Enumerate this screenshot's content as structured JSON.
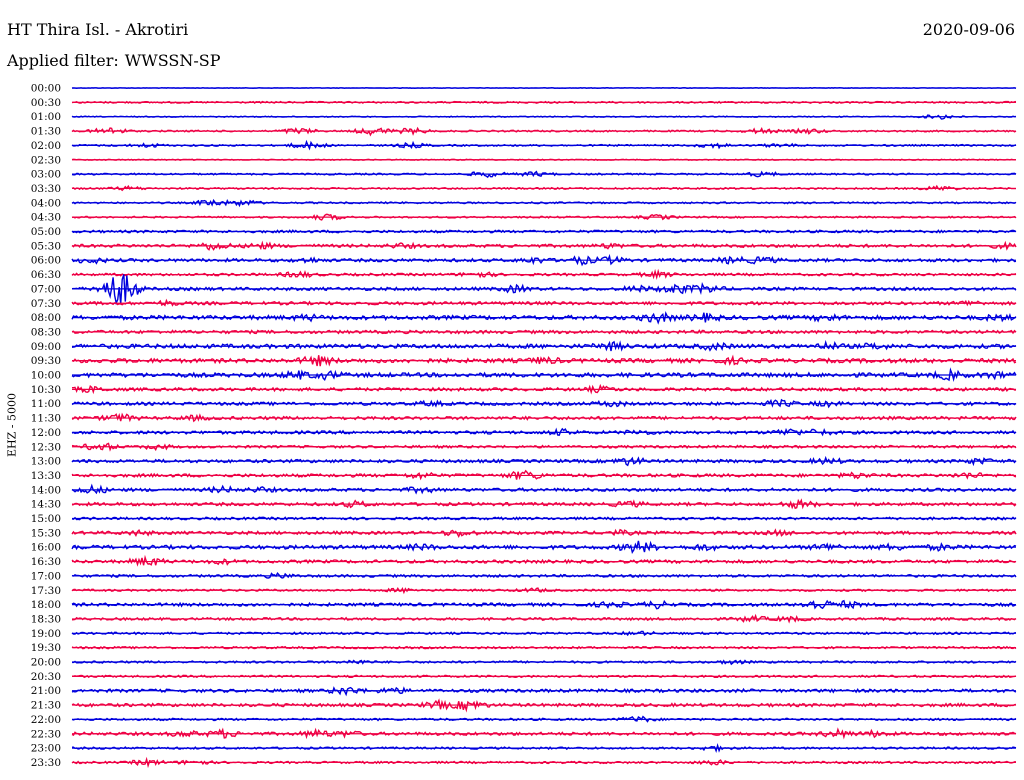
{
  "header": {
    "station": "HT Thira Isl. - Akrotiri",
    "date": "2020-09-06",
    "filter_label": "Applied filter:",
    "filter_value": "WWSSN-SP"
  },
  "chart_data": {
    "type": "line",
    "title": "HT Thira Isl. - Akrotiri",
    "ylabel": "EHZ - 5000",
    "xlabel": "",
    "x_range_minutes": [
      0,
      30
    ],
    "trace_labels": [
      "00:00",
      "00:30",
      "01:00",
      "01:30",
      "02:00",
      "02:30",
      "03:00",
      "03:30",
      "04:00",
      "04:30",
      "05:00",
      "05:30",
      "06:00",
      "06:30",
      "07:00",
      "07:30",
      "08:00",
      "08:30",
      "09:00",
      "09:30",
      "10:00",
      "10:30",
      "11:00",
      "11:30",
      "12:00",
      "12:30",
      "13:00",
      "13:30",
      "14:00",
      "14:30",
      "15:00",
      "15:30",
      "16:00",
      "16:30",
      "17:00",
      "17:30",
      "18:00",
      "18:30",
      "19:00",
      "19:30",
      "20:00",
      "20:30",
      "21:00",
      "21:30",
      "22:00",
      "22:30",
      "23:00",
      "23:30"
    ],
    "colors": {
      "even_hour": "#0000dd",
      "half_hour": "#ee0044"
    },
    "grid": false,
    "legend": "none",
    "series": [
      {
        "label": "00:00",
        "noise": 0.3,
        "bursts": []
      },
      {
        "label": "00:30",
        "noise": 0.8,
        "bursts": []
      },
      {
        "label": "01:00",
        "noise": 0.5,
        "bursts": [
          [
            0.92,
            2.5
          ]
        ]
      },
      {
        "label": "01:30",
        "noise": 0.8,
        "bursts": [
          [
            0.04,
            3.5
          ],
          [
            0.24,
            3
          ],
          [
            0.32,
            4
          ],
          [
            0.36,
            3
          ],
          [
            0.73,
            2.5
          ],
          [
            0.78,
            2.5
          ]
        ]
      },
      {
        "label": "02:00",
        "noise": 0.8,
        "bursts": [
          [
            0.08,
            2
          ],
          [
            0.25,
            3.5
          ],
          [
            0.36,
            2.5
          ],
          [
            0.68,
            2.5
          ],
          [
            0.75,
            2
          ]
        ]
      },
      {
        "label": "02:30",
        "noise": 0.5,
        "bursts": []
      },
      {
        "label": "03:00",
        "noise": 0.8,
        "bursts": [
          [
            0.44,
            3
          ],
          [
            0.49,
            2.5
          ],
          [
            0.73,
            2.5
          ]
        ]
      },
      {
        "label": "03:30",
        "noise": 0.8,
        "bursts": [
          [
            0.06,
            2
          ],
          [
            0.92,
            2.5
          ]
        ]
      },
      {
        "label": "04:00",
        "noise": 0.8,
        "bursts": [
          [
            0.15,
            3.5
          ],
          [
            0.18,
            3
          ]
        ]
      },
      {
        "label": "04:30",
        "noise": 0.8,
        "bursts": [
          [
            0.27,
            3
          ],
          [
            0.62,
            2.5
          ]
        ]
      },
      {
        "label": "05:00",
        "noise": 1.2,
        "bursts": []
      },
      {
        "label": "05:30",
        "noise": 1.5,
        "bursts": [
          [
            0.15,
            4
          ],
          [
            0.2,
            3
          ],
          [
            0.35,
            2.5
          ],
          [
            0.57,
            2.5
          ],
          [
            0.99,
            2.5
          ]
        ]
      },
      {
        "label": "06:00",
        "noise": 1.5,
        "bursts": [
          [
            0.02,
            3
          ],
          [
            0.25,
            2.5
          ],
          [
            0.49,
            3
          ],
          [
            0.54,
            4
          ],
          [
            0.57,
            3.5
          ],
          [
            0.7,
            3.5
          ],
          [
            0.73,
            3.5
          ]
        ]
      },
      {
        "label": "06:30",
        "noise": 1.2,
        "bursts": [
          [
            0.24,
            3
          ],
          [
            0.43,
            3
          ],
          [
            0.62,
            3
          ]
        ]
      },
      {
        "label": "07:00",
        "noise": 1.5,
        "bursts": [
          [
            0.05,
            18
          ],
          [
            0.47,
            3.5
          ],
          [
            0.6,
            3
          ],
          [
            0.64,
            5
          ],
          [
            0.67,
            4.5
          ]
        ]
      },
      {
        "label": "07:30",
        "noise": 1.5,
        "bursts": [
          [
            0.1,
            2.5
          ],
          [
            0.95,
            2.5
          ]
        ]
      },
      {
        "label": "08:00",
        "noise": 2,
        "bursts": [
          [
            0.25,
            3
          ],
          [
            0.62,
            5
          ],
          [
            0.67,
            4
          ],
          [
            0.8,
            3.5
          ],
          [
            0.98,
            3
          ]
        ]
      },
      {
        "label": "08:30",
        "noise": 1.5,
        "bursts": []
      },
      {
        "label": "09:00",
        "noise": 2,
        "bursts": [
          [
            0.57,
            4
          ],
          [
            0.68,
            3.5
          ],
          [
            0.8,
            3.5
          ],
          [
            0.85,
            3
          ]
        ]
      },
      {
        "label": "09:30",
        "noise": 2,
        "bursts": [
          [
            0.26,
            5
          ],
          [
            0.5,
            3.5
          ],
          [
            0.7,
            3
          ]
        ]
      },
      {
        "label": "10:00",
        "noise": 2,
        "bursts": [
          [
            0.24,
            4
          ],
          [
            0.27,
            4
          ],
          [
            0.93,
            4.5
          ],
          [
            0.98,
            3.5
          ]
        ]
      },
      {
        "label": "10:30",
        "noise": 1.5,
        "bursts": [
          [
            0.02,
            3
          ],
          [
            0.56,
            3
          ]
        ]
      },
      {
        "label": "11:00",
        "noise": 1.5,
        "bursts": [
          [
            0.38,
            2.5
          ],
          [
            0.57,
            3
          ],
          [
            0.75,
            3.5
          ],
          [
            0.8,
            2.5
          ]
        ]
      },
      {
        "label": "11:30",
        "noise": 1.5,
        "bursts": [
          [
            0.05,
            4
          ],
          [
            0.13,
            2.5
          ]
        ]
      },
      {
        "label": "12:00",
        "noise": 1.5,
        "bursts": [
          [
            0.52,
            3
          ],
          [
            0.6,
            2.5
          ],
          [
            0.76,
            3.5
          ],
          [
            0.79,
            3
          ]
        ]
      },
      {
        "label": "12:30",
        "noise": 1.2,
        "bursts": [
          [
            0.03,
            4
          ],
          [
            0.09,
            2.5
          ]
        ]
      },
      {
        "label": "13:00",
        "noise": 1.5,
        "bursts": [
          [
            0.59,
            4
          ],
          [
            0.8,
            3
          ],
          [
            0.96,
            3
          ]
        ]
      },
      {
        "label": "13:30",
        "noise": 1.5,
        "bursts": [
          [
            0.37,
            3
          ],
          [
            0.48,
            5
          ],
          [
            0.83,
            3
          ],
          [
            0.95,
            3
          ]
        ]
      },
      {
        "label": "14:00",
        "noise": 1.5,
        "bursts": [
          [
            0.02,
            4
          ],
          [
            0.16,
            3
          ],
          [
            0.2,
            2.5
          ],
          [
            0.37,
            3
          ]
        ]
      },
      {
        "label": "14:30",
        "noise": 1.5,
        "bursts": [
          [
            0.3,
            3
          ],
          [
            0.59,
            3
          ],
          [
            0.77,
            4
          ]
        ]
      },
      {
        "label": "15:00",
        "noise": 1.2,
        "bursts": []
      },
      {
        "label": "15:30",
        "noise": 1.5,
        "bursts": [
          [
            0.07,
            2.5
          ],
          [
            0.41,
            3.5
          ],
          [
            0.58,
            2.5
          ],
          [
            0.75,
            2.5
          ]
        ]
      },
      {
        "label": "16:00",
        "noise": 1.8,
        "bursts": [
          [
            0.37,
            3
          ],
          [
            0.6,
            6
          ],
          [
            0.67,
            3
          ],
          [
            0.8,
            3.5
          ],
          [
            0.87,
            3
          ],
          [
            0.92,
            3
          ]
        ]
      },
      {
        "label": "16:30",
        "noise": 1.5,
        "bursts": [
          [
            0.08,
            4.5
          ],
          [
            0.16,
            2.5
          ]
        ]
      },
      {
        "label": "17:00",
        "noise": 1.2,
        "bursts": [
          [
            0.22,
            2.5
          ]
        ]
      },
      {
        "label": "17:30",
        "noise": 1,
        "bursts": [
          [
            0.35,
            2
          ],
          [
            0.49,
            2
          ]
        ]
      },
      {
        "label": "18:00",
        "noise": 1.5,
        "bursts": [
          [
            0.57,
            3
          ],
          [
            0.62,
            3.5
          ],
          [
            0.79,
            5
          ],
          [
            0.82,
            3.5
          ]
        ]
      },
      {
        "label": "18:30",
        "noise": 1.2,
        "bursts": [
          [
            0.72,
            3
          ],
          [
            0.76,
            2.5
          ]
        ]
      },
      {
        "label": "19:00",
        "noise": 1,
        "bursts": [
          [
            0.6,
            2
          ]
        ]
      },
      {
        "label": "19:30",
        "noise": 1,
        "bursts": []
      },
      {
        "label": "20:00",
        "noise": 1,
        "bursts": [
          [
            0.3,
            2
          ],
          [
            0.7,
            2
          ]
        ]
      },
      {
        "label": "20:30",
        "noise": 1,
        "bursts": []
      },
      {
        "label": "21:00",
        "noise": 1.5,
        "bursts": [
          [
            0.29,
            4
          ],
          [
            0.34,
            3
          ]
        ]
      },
      {
        "label": "21:30",
        "noise": 1.5,
        "bursts": [
          [
            0.39,
            4
          ],
          [
            0.42,
            5
          ]
        ]
      },
      {
        "label": "22:00",
        "noise": 1,
        "bursts": [
          [
            0.6,
            3
          ]
        ]
      },
      {
        "label": "22:30",
        "noise": 1.5,
        "bursts": [
          [
            0.12,
            3
          ],
          [
            0.16,
            4
          ],
          [
            0.26,
            4
          ],
          [
            0.29,
            3
          ],
          [
            0.81,
            4
          ],
          [
            0.85,
            3
          ]
        ]
      },
      {
        "label": "23:00",
        "noise": 1,
        "bursts": [
          [
            0.68,
            2.5
          ]
        ]
      },
      {
        "label": "23:30",
        "noise": 1,
        "bursts": [
          [
            0.08,
            3
          ],
          [
            0.13,
            2.5
          ],
          [
            0.68,
            2.5
          ]
        ]
      }
    ]
  }
}
